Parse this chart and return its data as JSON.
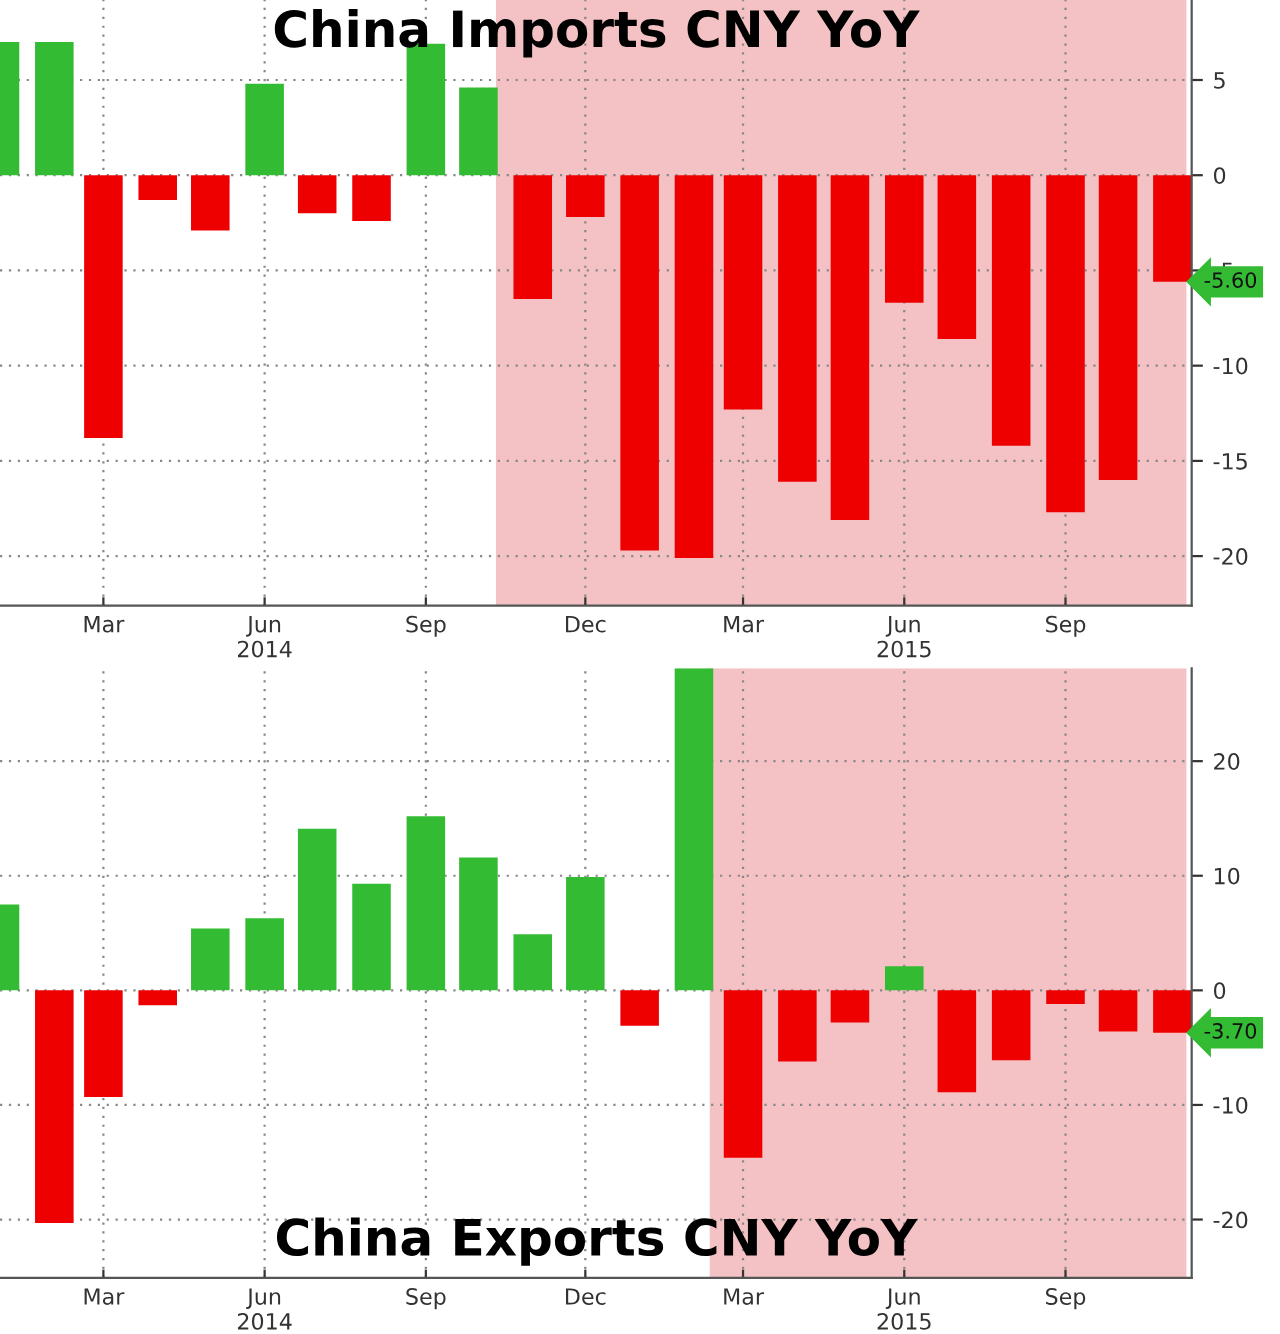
{
  "chart_data": [
    {
      "type": "bar",
      "title": "China Imports CNY YoY",
      "x": [
        "2014-01",
        "2014-02",
        "2014-03",
        "2014-04",
        "2014-05",
        "2014-06",
        "2014-07",
        "2014-08",
        "2014-09",
        "2014-10",
        "2014-11",
        "2014-12",
        "2015-01",
        "2015-02",
        "2015-03",
        "2015-04",
        "2015-05",
        "2015-06",
        "2015-07",
        "2015-08",
        "2015-09",
        "2015-10",
        "2015-11"
      ],
      "values": [
        7.0,
        7.0,
        -13.8,
        -1.3,
        -2.9,
        4.8,
        -2.0,
        -2.4,
        6.9,
        4.6,
        -6.5,
        -2.2,
        -19.7,
        -20.1,
        -12.3,
        -16.1,
        -18.1,
        -6.7,
        -8.6,
        -14.2,
        -17.7,
        -16.0,
        -5.6
      ],
      "colors": [
        "#33bb33",
        "#33bb33",
        "#ee0000",
        "#ee0000",
        "#ee0000",
        "#33bb33",
        "#ee0000",
        "#ee0000",
        "#33bb33",
        "#33bb33",
        "#ee0000",
        "#ee0000",
        "#ee0000",
        "#ee0000",
        "#ee0000",
        "#ee0000",
        "#ee0000",
        "#ee0000",
        "#ee0000",
        "#ee0000",
        "#ee0000",
        "#ee0000",
        "#ee0000"
      ],
      "xlim": [
        "2014-01-01",
        "2015-11-12"
      ],
      "xticks": [
        {
          "value": "2014-03",
          "label": "Mar"
        },
        {
          "value": "2014-06",
          "label": "Jun\n2014"
        },
        {
          "value": "2014-09",
          "label": "Sep"
        },
        {
          "value": "2014-12",
          "label": "Dec"
        },
        {
          "value": "2015-03",
          "label": "Mar"
        },
        {
          "value": "2015-06",
          "label": "Jun\n2015"
        },
        {
          "value": "2015-09",
          "label": "Sep"
        }
      ],
      "ylim": [
        -22.6,
        9.2
      ],
      "yticks": [
        5,
        0,
        -5,
        -10,
        -15,
        -20
      ],
      "grid": true,
      "bands": [
        {
          "axis": "x",
          "from": "2014-10-11",
          "to": "2015-11-09",
          "color": "#f4c2c4"
        }
      ],
      "annotations": [
        {
          "text": "-5.60",
          "x": "2015-11",
          "y": -5.6
        }
      ]
    },
    {
      "type": "bar",
      "title": "China Exports CNY YoY",
      "x": [
        "2014-01",
        "2014-02",
        "2014-03",
        "2014-04",
        "2014-05",
        "2014-06",
        "2014-07",
        "2014-08",
        "2014-09",
        "2014-10",
        "2014-11",
        "2014-12",
        "2015-01",
        "2015-02",
        "2015-03",
        "2015-04",
        "2015-05",
        "2015-06",
        "2015-07",
        "2015-08",
        "2015-09",
        "2015-10",
        "2015-11"
      ],
      "values": [
        7.5,
        -20.3,
        -9.3,
        -1.3,
        5.4,
        6.3,
        14.1,
        9.3,
        15.2,
        11.6,
        4.9,
        9.9,
        -3.1,
        28.1,
        -14.6,
        -6.2,
        -2.8,
        2.1,
        -8.9,
        -6.1,
        -1.2,
        -3.6,
        -3.7
      ],
      "colors": [
        "#33bb33",
        "#ee0000",
        "#ee0000",
        "#ee0000",
        "#33bb33",
        "#33bb33",
        "#33bb33",
        "#33bb33",
        "#33bb33",
        "#33bb33",
        "#33bb33",
        "#33bb33",
        "#ee0000",
        "#33bb33",
        "#ee0000",
        "#ee0000",
        "#ee0000",
        "#33bb33",
        "#ee0000",
        "#ee0000",
        "#ee0000",
        "#ee0000",
        "#ee0000"
      ],
      "xlim": [
        "2014-01-01",
        "2015-11-12"
      ],
      "xticks": [
        {
          "value": "2014-03",
          "label": "Mar"
        },
        {
          "value": "2014-06",
          "label": "Jun\n2014"
        },
        {
          "value": "2014-09",
          "label": "Sep"
        },
        {
          "value": "2014-12",
          "label": "Dec"
        },
        {
          "value": "2015-03",
          "label": "Mar"
        },
        {
          "value": "2015-06",
          "label": "Jun\n2015"
        },
        {
          "value": "2015-09",
          "label": "Sep"
        }
      ],
      "ylim": [
        -25.1,
        28.1
      ],
      "yticks": [
        20,
        10,
        0,
        -10,
        -20
      ],
      "grid": true,
      "bands": [
        {
          "axis": "x",
          "from": "2015-02-10",
          "to": "2015-11-09",
          "color": "#f4c2c4"
        }
      ],
      "annotations": [
        {
          "text": "-3.70",
          "x": "2015-11",
          "y": -3.7
        }
      ]
    }
  ]
}
